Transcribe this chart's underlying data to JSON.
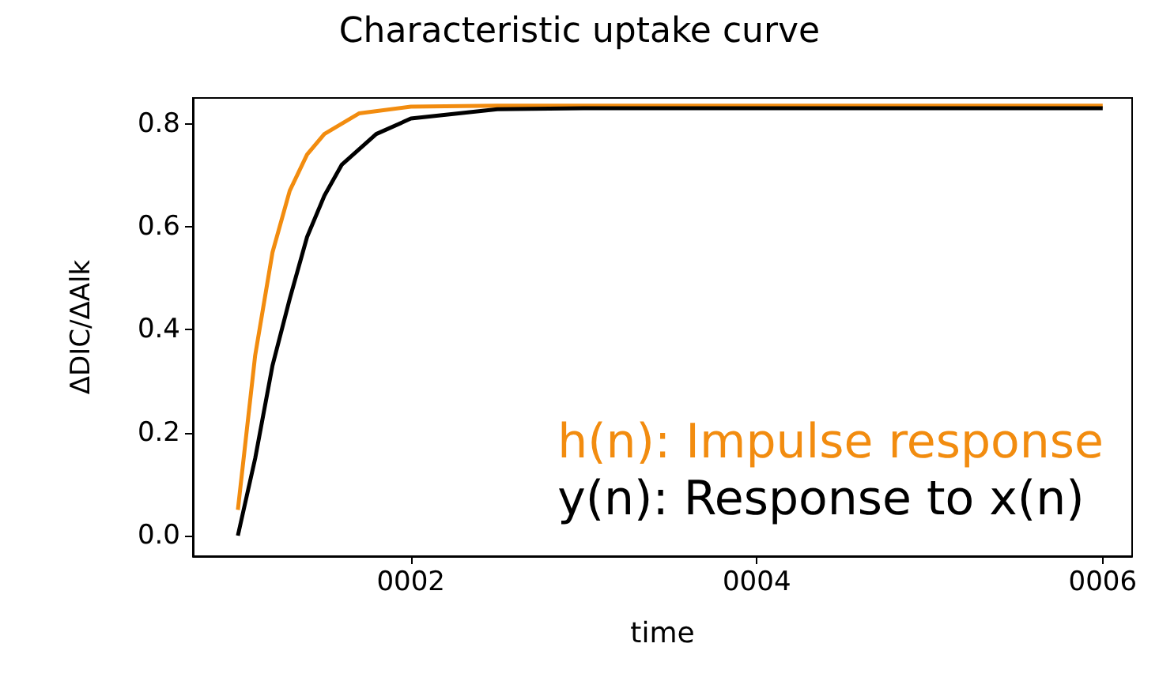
{
  "chart_data": {
    "type": "line",
    "title": "Characteristic uptake curve",
    "xlabel": "time",
    "ylabel": "ΔDIC/ΔAlk",
    "xlim": [
      0.74,
      6.17
    ],
    "ylim": [
      -0.04,
      0.85
    ],
    "xticks": [
      {
        "value": 2,
        "label": "0002"
      },
      {
        "value": 4,
        "label": "0004"
      },
      {
        "value": 6,
        "label": "0006"
      }
    ],
    "yticks": [
      {
        "value": 0,
        "label": "0.0"
      },
      {
        "value": 0.2,
        "label": "0.2"
      },
      {
        "value": 0.4,
        "label": "0.4"
      },
      {
        "value": 0.6,
        "label": "0.6"
      },
      {
        "value": 0.8,
        "label": "0.8"
      }
    ],
    "legend": "bottom right",
    "grid": false,
    "line_style": "solid",
    "marker": "none",
    "series": [
      {
        "name": "h(n): Impulse response",
        "color": "#f28c0f",
        "x": [
          1.0,
          1.1,
          1.2,
          1.3,
          1.4,
          1.5,
          1.7,
          2.0,
          2.5,
          6.0
        ],
        "values": [
          0.05,
          0.35,
          0.55,
          0.67,
          0.74,
          0.78,
          0.82,
          0.833,
          0.835,
          0.835
        ]
      },
      {
        "name": "y(n): Response to x(n)",
        "color": "#000000",
        "x": [
          1.0,
          1.1,
          1.2,
          1.3,
          1.4,
          1.5,
          1.6,
          1.8,
          2.0,
          2.5,
          3.0,
          6.0
        ],
        "values": [
          0,
          0.15,
          0.33,
          0.46,
          0.58,
          0.66,
          0.72,
          0.78,
          0.81,
          0.828,
          0.83,
          0.83
        ]
      }
    ]
  }
}
